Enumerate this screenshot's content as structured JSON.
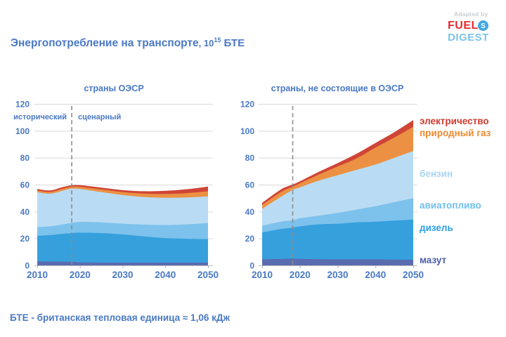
{
  "header": {
    "title": "Энергопотребление на транспорте",
    "title_suffix": ", 10",
    "title_exponent": "15",
    "title_unit": " БТЕ",
    "logo": {
      "adapted_by": "Adapted by",
      "fuel": "FUEL",
      "digest": "DIGEST",
      "fuel_color": "#e62b2f",
      "digest_color": "#7cc3e9",
      "icon": "s-swirl-icon",
      "icon_color": "#41a7e0"
    }
  },
  "annotations": {
    "historical": "исторический",
    "scenario": "сценарный"
  },
  "footer": {
    "note": "БТЕ - британская тепловая единица ≈ 1,06 кДж"
  },
  "colors": {
    "text_blue": "#4a79c4",
    "grid": "#d9d9d9",
    "axis": "#bfbfbf",
    "dash": "#8a8a8a"
  },
  "legend": [
    {
      "label": "электричество",
      "color": "#d03a2d"
    },
    {
      "label": "природный газ",
      "color": "#ee8a30"
    },
    {
      "label": "бензин",
      "color": "#aad4f0"
    },
    {
      "label": "авиатопливо",
      "color": "#6fc0ee"
    },
    {
      "label": "дизель",
      "color": "#2b9fe2"
    },
    {
      "label": "мазут",
      "color": "#4d5fa9"
    }
  ],
  "chart_data": [
    {
      "type": "area",
      "stacked": true,
      "title": "страны ОЭСР",
      "xlim": [
        2010,
        2050
      ],
      "ylim": [
        0,
        120
      ],
      "xticks": [
        2010,
        2020,
        2030,
        2040,
        2050
      ],
      "yticks": [
        0,
        20,
        40,
        60,
        80,
        100,
        120
      ],
      "event_line_x": 2018,
      "x": [
        2010,
        2013,
        2016,
        2018,
        2020,
        2025,
        2030,
        2035,
        2040,
        2045,
        2050
      ],
      "series": [
        {
          "name": "мазут",
          "color": "#5a6cb0",
          "values": [
            3.0,
            2.9,
            2.8,
            2.7,
            2.2,
            2.1,
            2.1,
            2.1,
            2.1,
            2.1,
            2.1
          ]
        },
        {
          "name": "дизель",
          "color": "#36a0dd",
          "values": [
            19.0,
            19.6,
            20.7,
            21.3,
            22.1,
            21.9,
            20.9,
            19.4,
            18.2,
            17.7,
            17.4
          ]
        },
        {
          "name": "авиатопливо",
          "color": "#7dc2ec",
          "values": [
            6.5,
            6.5,
            7.0,
            7.5,
            8.0,
            8.0,
            8.0,
            8.8,
            9.7,
            10.7,
            12.0
          ]
        },
        {
          "name": "бензин",
          "color": "#b9dcf4",
          "values": [
            25.8,
            24.3,
            25.0,
            25.5,
            24.5,
            22.5,
            21.3,
            20.5,
            20.3,
            20.0,
            19.8
          ]
        },
        {
          "name": "природный газ",
          "color": "#ec9143",
          "values": [
            1.3,
            1.3,
            1.5,
            1.4,
            1.6,
            2.0,
            2.2,
            2.5,
            2.8,
            3.2,
            3.8
          ]
        },
        {
          "name": "электричество",
          "color": "#cf4537",
          "values": [
            1.1,
            1.1,
            1.2,
            1.1,
            1.2,
            1.3,
            1.5,
            1.8,
            2.3,
            2.9,
            3.5
          ]
        }
      ]
    },
    {
      "type": "area",
      "stacked": true,
      "title": "страны, не состоящие в ОЭСР",
      "xlim": [
        2010,
        2050
      ],
      "ylim": [
        0,
        120
      ],
      "xticks": [
        2010,
        2020,
        2030,
        2040,
        2050
      ],
      "yticks": [
        0,
        20,
        40,
        60,
        80,
        100,
        120
      ],
      "event_line_x": 2018,
      "x": [
        2010,
        2015,
        2018,
        2020,
        2025,
        2030,
        2035,
        2040,
        2045,
        2050
      ],
      "series": [
        {
          "name": "мазут",
          "color": "#5a6cb0",
          "values": [
            4.5,
            4.8,
            5.0,
            4.8,
            4.6,
            4.5,
            4.5,
            4.5,
            4.3,
            4.2
          ]
        },
        {
          "name": "дизель",
          "color": "#36a0dd",
          "values": [
            20.0,
            22.2,
            23.0,
            24.2,
            25.9,
            26.5,
            27.5,
            28.0,
            29.0,
            29.8
          ]
        },
        {
          "name": "авиатопливо",
          "color": "#7dc2ec",
          "values": [
            5.0,
            5.5,
            5.5,
            6.0,
            6.5,
            8.0,
            9.5,
            11.5,
            13.7,
            16.0
          ]
        },
        {
          "name": "бензин",
          "color": "#b9dcf4",
          "values": [
            12.5,
            18.5,
            22.5,
            23.0,
            26.0,
            28.0,
            29.5,
            31.0,
            33.0,
            35.0
          ]
        },
        {
          "name": "природный газ",
          "color": "#ec9143",
          "values": [
            3.0,
            3.5,
            2.5,
            3.0,
            4.5,
            6.5,
            8.5,
            12.5,
            15.0,
            18.0
          ]
        },
        {
          "name": "электричество",
          "color": "#cf4537",
          "values": [
            1.5,
            2.0,
            1.5,
            1.5,
            2.0,
            2.5,
            3.5,
            3.5,
            4.0,
            5.0
          ]
        }
      ]
    }
  ]
}
